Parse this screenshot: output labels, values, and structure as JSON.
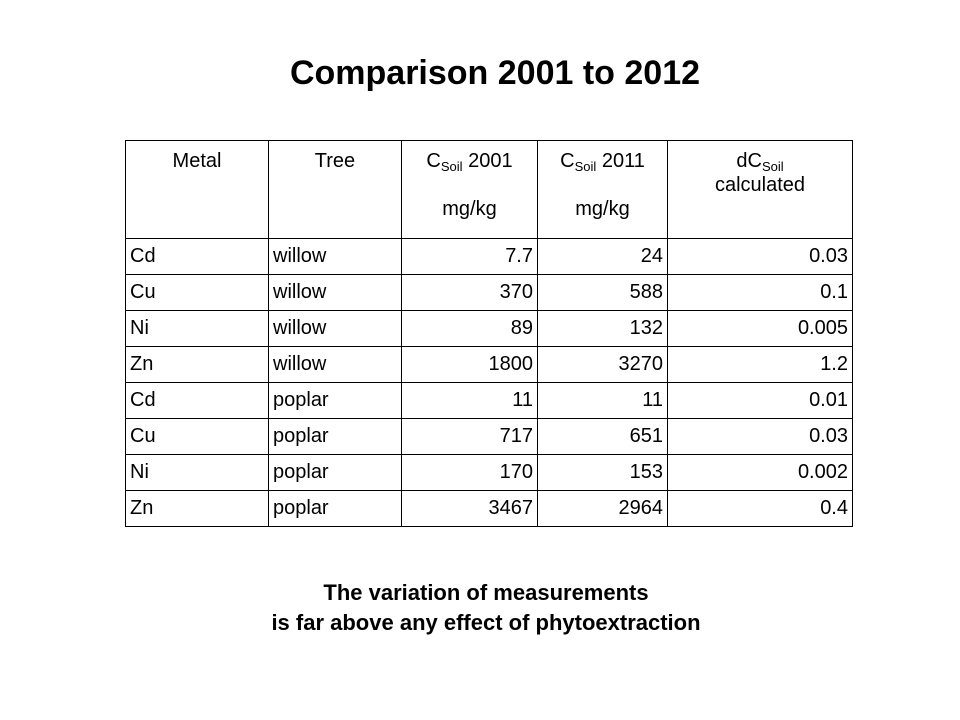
{
  "title": "Comparison 2001 to 2012",
  "table": {
    "headers": {
      "metal": "Metal",
      "tree": "Tree",
      "c2001": {
        "prefix": "C",
        "sub": "Soil",
        "suffix": " 2001",
        "unit": "mg/kg"
      },
      "c2011": {
        "prefix": "C",
        "sub": "Soil",
        "suffix": " 2011",
        "unit": "mg/kg"
      },
      "dc": {
        "prefix": "dC",
        "sub": "Soil",
        "line2": "calculated"
      }
    },
    "rows": [
      {
        "metal": "Cd",
        "tree": "willow",
        "c2001": "7.7",
        "c2011": "24",
        "dc": "0.03"
      },
      {
        "metal": "Cu",
        "tree": "willow",
        "c2001": "370",
        "c2011": "588",
        "dc": "0.1"
      },
      {
        "metal": "Ni",
        "tree": "willow",
        "c2001": "89",
        "c2011": "132",
        "dc": "0.005"
      },
      {
        "metal": "Zn",
        "tree": "willow",
        "c2001": "1800",
        "c2011": "3270",
        "dc": "1.2"
      },
      {
        "metal": "Cd",
        "tree": "poplar",
        "c2001": "11",
        "c2011": "11",
        "dc": "0.01"
      },
      {
        "metal": "Cu",
        "tree": "poplar",
        "c2001": "717",
        "c2011": "651",
        "dc": "0.03"
      },
      {
        "metal": "Ni",
        "tree": "poplar",
        "c2001": "170",
        "c2011": "153",
        "dc": "0.002"
      },
      {
        "metal": "Zn",
        "tree": "poplar",
        "c2001": "3467",
        "c2011": "2964",
        "dc": "0.4"
      }
    ]
  },
  "footnote": {
    "line1": "The variation of measurements",
    "line2": "is far above any effect of phytoextraction"
  }
}
